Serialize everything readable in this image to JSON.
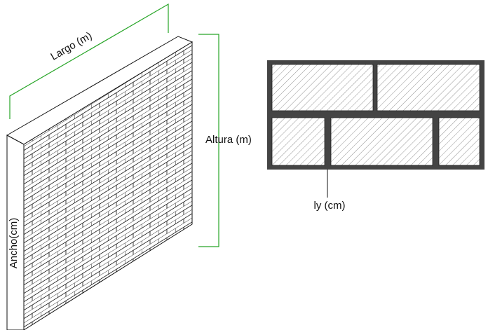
{
  "labels": {
    "largo": "Largo (m)",
    "altura": "Altura (m)",
    "ancho": "Ancho(cm)",
    "ly": "ly (cm)"
  },
  "colors": {
    "dimension_line": "#27a527",
    "outline": "#111111",
    "mortar": "#444444",
    "hatch": "#777777",
    "brick_line": "#222222"
  }
}
